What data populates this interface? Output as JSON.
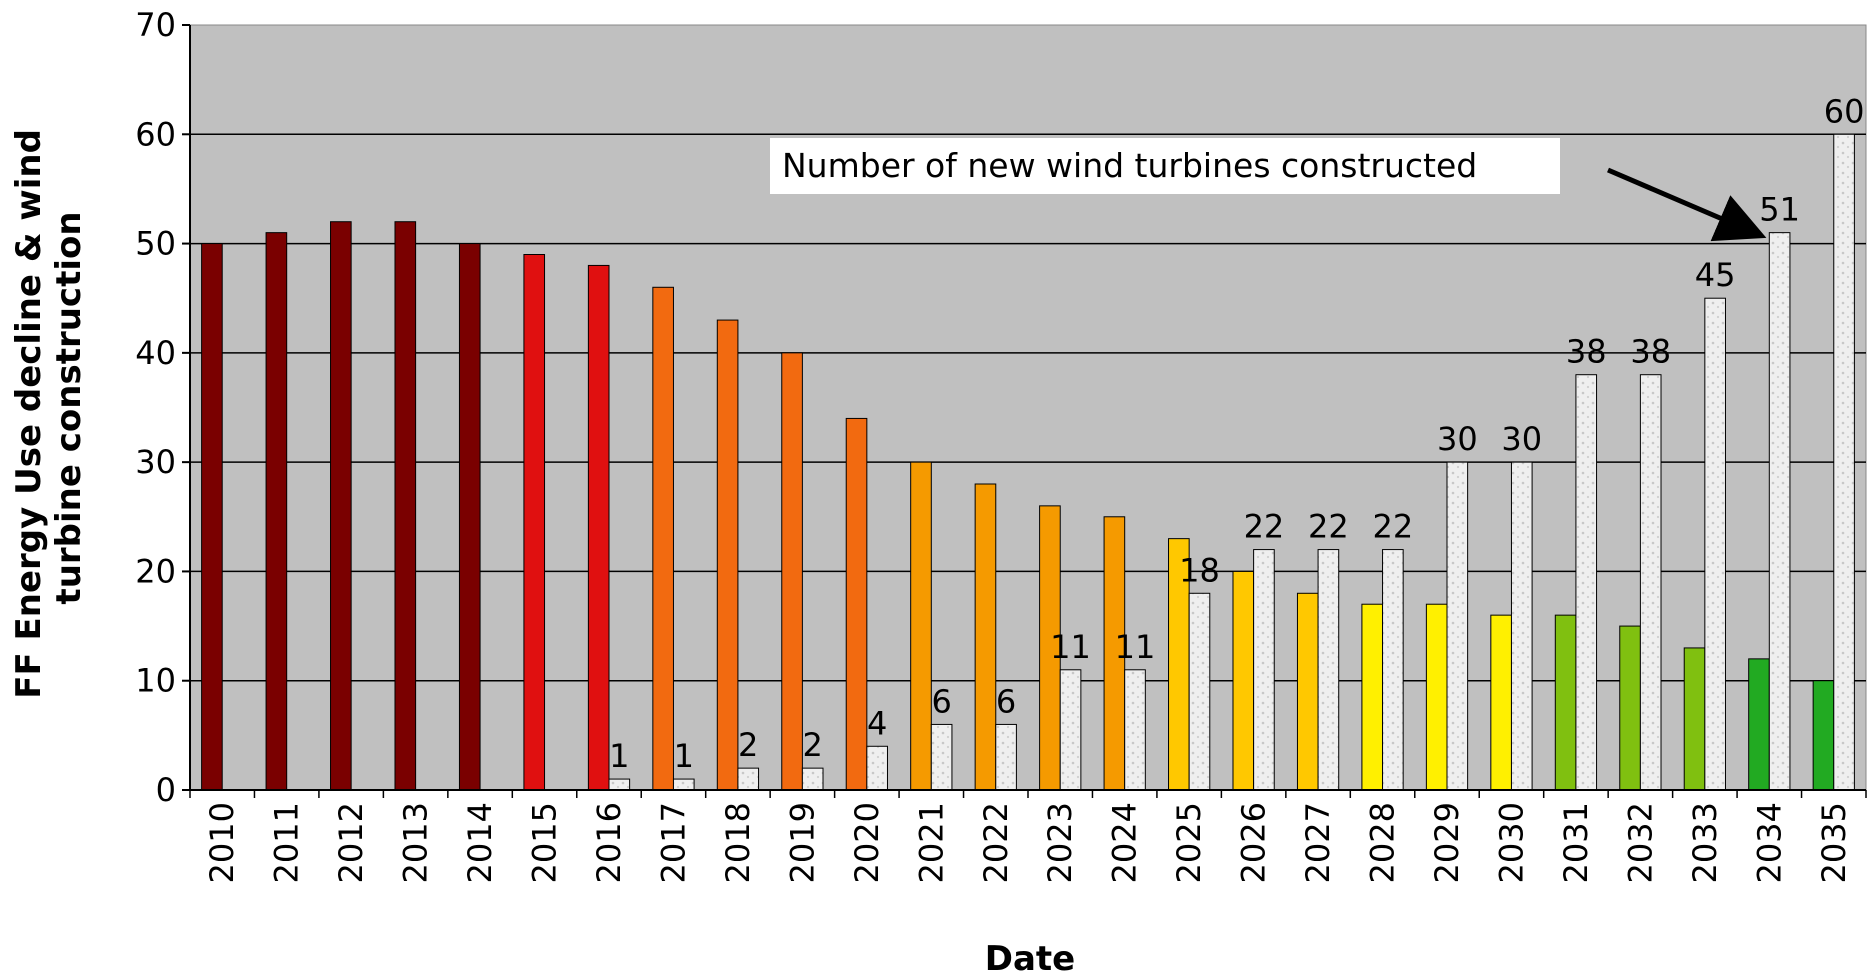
{
  "chart_data": {
    "type": "bar",
    "title": "",
    "xlabel": "Date",
    "ylabel": "FF Energy Use decline & wind turbine construction",
    "ylim": [
      0,
      70
    ],
    "yticks": [
      0,
      10,
      20,
      30,
      40,
      50,
      60,
      70
    ],
    "grid": true,
    "categories": [
      "2010",
      "2011",
      "2012",
      "2013",
      "2014",
      "2015",
      "2016",
      "2017",
      "2018",
      "2019",
      "2020",
      "2021",
      "2022",
      "2023",
      "2024",
      "2025",
      "2026",
      "2027",
      "2028",
      "2029",
      "2030",
      "2031",
      "2032",
      "2033",
      "2034",
      "2035"
    ],
    "series": [
      {
        "values": [
          50,
          51,
          52,
          52,
          50,
          49,
          48,
          46,
          43,
          40,
          34,
          30,
          28,
          26,
          25,
          23,
          20,
          18,
          17,
          17,
          16,
          16,
          15,
          13,
          12,
          10
        ],
        "colors": [
          "#7a0000",
          "#7a0000",
          "#7a0000",
          "#7a0000",
          "#7a0000",
          "#e01010",
          "#e01010",
          "#f26a10",
          "#f26a10",
          "#f26a10",
          "#f26a10",
          "#f59a00",
          "#f59a00",
          "#f59a00",
          "#f59a00",
          "#ffc800",
          "#ffc800",
          "#ffc800",
          "#fff000",
          "#fff000",
          "#fff000",
          "#80c010",
          "#80c010",
          "#80c010",
          "#22aa22",
          "#22aa22"
        ]
      },
      {
        "name": "Number of new wind turbines constructed",
        "values": [
          0,
          0,
          0,
          0,
          0,
          0,
          1,
          1,
          2,
          2,
          4,
          6,
          6,
          11,
          11,
          18,
          22,
          22,
          22,
          30,
          30,
          38,
          38,
          45,
          51,
          60
        ],
        "labels": [
          "",
          "",
          "",
          "",
          "",
          "",
          "1",
          "1",
          "2",
          "2",
          "4",
          "6",
          "6",
          "11",
          "11",
          "18",
          "22",
          "22",
          "22",
          "30",
          "30",
          "38",
          "38",
          "45",
          "51",
          "60"
        ],
        "color": "#f0f0f0"
      }
    ],
    "annotation": {
      "text": "Number of new wind turbines constructed",
      "points_to": "2034"
    },
    "plot_background": "#c0c0c0"
  }
}
